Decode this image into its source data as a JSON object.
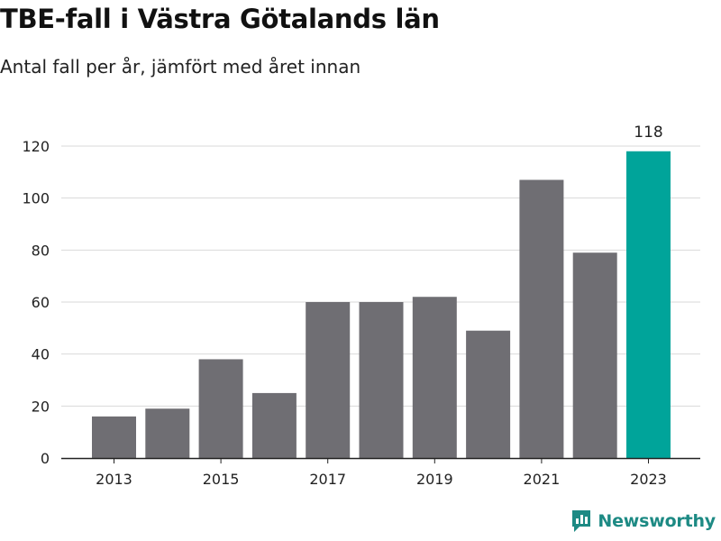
{
  "title": "TBE-fall i Västra Götalands län",
  "subtitle": "Antal fall per år, jämfört med året innan",
  "brand": {
    "name": "Newsworthy",
    "icon": "newsworthy-logo-icon",
    "color": "#1d8a84"
  },
  "colors": {
    "bar": "#6f6e73",
    "highlight": "#00a49a",
    "grid": "#d9d9d9",
    "axis": "#222222"
  },
  "chart_data": {
    "type": "bar",
    "title": "TBE-fall i Västra Götalands län",
    "subtitle": "Antal fall per år, jämfört med året innan",
    "xlabel": "",
    "ylabel": "",
    "categories": [
      "2013",
      "2014",
      "2015",
      "2016",
      "2017",
      "2018",
      "2019",
      "2020",
      "2021",
      "2022",
      "2023"
    ],
    "values": [
      16,
      19,
      38,
      25,
      60,
      60,
      62,
      49,
      107,
      79,
      118
    ],
    "x_tick_labels": [
      "2013",
      "2015",
      "2017",
      "2019",
      "2021",
      "2023"
    ],
    "y_ticks": [
      0,
      20,
      40,
      60,
      80,
      100,
      120
    ],
    "ylim": [
      0,
      126
    ],
    "grid": true,
    "highlight_category": "2023",
    "data_labels": [
      {
        "category": "2023",
        "text": "118"
      }
    ]
  }
}
